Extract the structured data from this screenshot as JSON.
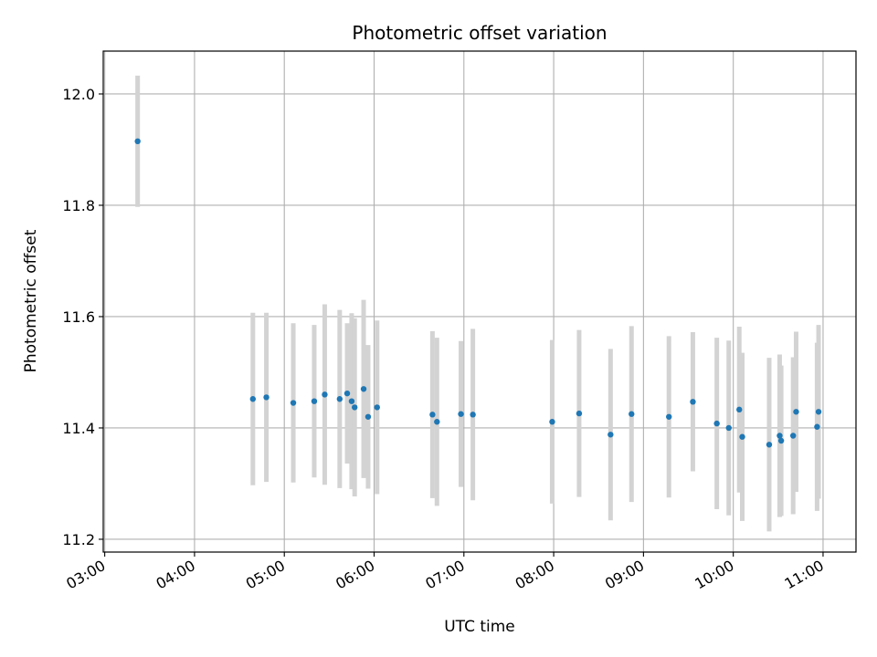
{
  "chart_data": {
    "type": "scatter",
    "title": "Photometric offset variation",
    "xlabel": "UTC time",
    "ylabel": "Photometric offset",
    "xlim": [
      "02:59",
      "11:22"
    ],
    "ylim": [
      11.177,
      12.077
    ],
    "grid": true,
    "x_ticks": [
      "03:00",
      "04:00",
      "05:00",
      "06:00",
      "07:00",
      "08:00",
      "09:00",
      "10:00",
      "11:00"
    ],
    "y_ticks": [
      11.2,
      11.4,
      11.6,
      11.8,
      12.0
    ],
    "y_tick_labels": [
      "11.2",
      "11.4",
      "11.6",
      "11.8",
      "12.0"
    ],
    "colors": {
      "points": "#1f77b4",
      "error_bars": "#d3d3d3",
      "grid": "#b0b0b0"
    },
    "points": [
      {
        "x": "03:22",
        "y": 11.915,
        "err": 0.118
      },
      {
        "x": "04:39",
        "y": 11.452,
        "err": 0.155
      },
      {
        "x": "04:48",
        "y": 11.455,
        "err": 0.152
      },
      {
        "x": "05:06",
        "y": 11.445,
        "err": 0.143
      },
      {
        "x": "05:20",
        "y": 11.448,
        "err": 0.137
      },
      {
        "x": "05:27",
        "y": 11.46,
        "err": 0.162
      },
      {
        "x": "05:37",
        "y": 11.452,
        "err": 0.16
      },
      {
        "x": "05:42",
        "y": 11.462,
        "err": 0.126
      },
      {
        "x": "05:45",
        "y": 11.448,
        "err": 0.158
      },
      {
        "x": "05:47",
        "y": 11.437,
        "err": 0.16
      },
      {
        "x": "05:53",
        "y": 11.47,
        "err": 0.16
      },
      {
        "x": "05:56",
        "y": 11.42,
        "err": 0.129
      },
      {
        "x": "06:02",
        "y": 11.437,
        "err": 0.156
      },
      {
        "x": "06:39",
        "y": 11.424,
        "err": 0.15
      },
      {
        "x": "06:42",
        "y": 11.411,
        "err": 0.151
      },
      {
        "x": "06:58",
        "y": 11.425,
        "err": 0.131
      },
      {
        "x": "07:06",
        "y": 11.424,
        "err": 0.154
      },
      {
        "x": "07:59",
        "y": 11.411,
        "err": 0.147
      },
      {
        "x": "08:17",
        "y": 11.426,
        "err": 0.15
      },
      {
        "x": "08:38",
        "y": 11.388,
        "err": 0.154
      },
      {
        "x": "08:52",
        "y": 11.425,
        "err": 0.158
      },
      {
        "x": "09:17",
        "y": 11.42,
        "err": 0.145
      },
      {
        "x": "09:33",
        "y": 11.447,
        "err": 0.125
      },
      {
        "x": "09:49",
        "y": 11.408,
        "err": 0.154
      },
      {
        "x": "09:57",
        "y": 11.4,
        "err": 0.157
      },
      {
        "x": "10:04",
        "y": 11.433,
        "err": 0.149
      },
      {
        "x": "10:06",
        "y": 11.384,
        "err": 0.151
      },
      {
        "x": "10:24",
        "y": 11.37,
        "err": 0.156
      },
      {
        "x": "10:31",
        "y": 11.386,
        "err": 0.146
      },
      {
        "x": "10:32",
        "y": 11.377,
        "err": 0.135
      },
      {
        "x": "10:40",
        "y": 11.386,
        "err": 0.141
      },
      {
        "x": "10:42",
        "y": 11.429,
        "err": 0.144
      },
      {
        "x": "10:56",
        "y": 11.402,
        "err": 0.151
      },
      {
        "x": "10:57",
        "y": 11.429,
        "err": 0.156
      }
    ]
  }
}
